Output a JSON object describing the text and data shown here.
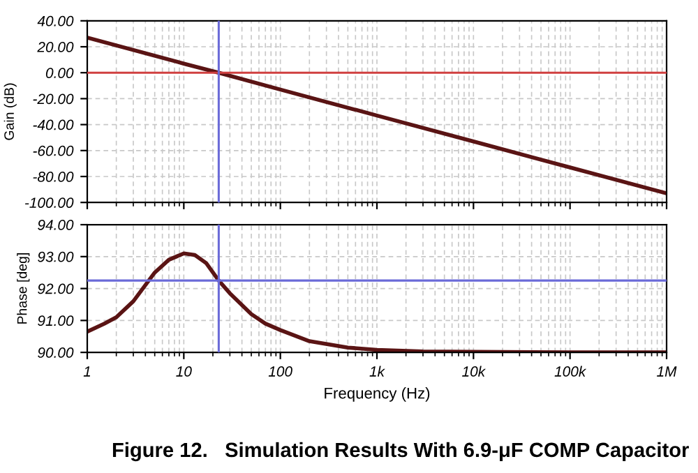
{
  "chart_data": [
    {
      "type": "line",
      "ylabel": "Gain (dB)",
      "log": "x",
      "grid": true,
      "line_style": "solid",
      "tick_labels": "y",
      "series": [
        {
          "color": "#5a1414",
          "x": [
            1,
            10,
            23,
            100,
            1000,
            10000,
            100000,
            1000000
          ],
          "values": [
            27,
            7,
            0,
            -13,
            -33,
            -53,
            -73,
            -93
          ]
        }
      ],
      "xlim": [
        1,
        1000000
      ],
      "xticks": [
        {
          "value": 1,
          "label": null
        },
        {
          "value": 10,
          "label": null
        },
        {
          "value": 100,
          "label": null
        },
        {
          "value": 1000,
          "label": null
        },
        {
          "value": 10000,
          "label": null
        },
        {
          "value": 100000,
          "label": null
        },
        {
          "value": 1000000,
          "label": null
        }
      ],
      "ylim": [
        -100,
        40
      ],
      "yticks": [
        {
          "value": -100,
          "label": "-100.00"
        },
        {
          "value": -80,
          "label": "-80.00"
        },
        {
          "value": -60,
          "label": "-60.00"
        },
        {
          "value": -40,
          "label": "-40.00"
        },
        {
          "value": -20,
          "label": "-20.00"
        },
        {
          "value": 0,
          "label": "0.00"
        },
        {
          "value": 20,
          "label": "20.00"
        },
        {
          "value": 40,
          "label": "40.00"
        }
      ],
      "ref_lines": [
        {
          "axis": "y",
          "value": 0,
          "color": "#d04040"
        },
        {
          "axis": "x",
          "value": 23,
          "color": "#6a6ad8"
        }
      ]
    },
    {
      "type": "line",
      "ylabel": "Phase [deg]",
      "xlabel": "Frequency (Hz)",
      "log": "x",
      "grid": true,
      "line_style": "solid",
      "series": [
        {
          "color": "#5a1414",
          "x": [
            1,
            1.5,
            2,
            3,
            5,
            7,
            10,
            13,
            17,
            23,
            30,
            50,
            70,
            100,
            200,
            500,
            1000,
            3000,
            10000,
            100000,
            1000000
          ],
          "values": [
            90.65,
            90.9,
            91.1,
            91.6,
            92.5,
            92.9,
            93.1,
            93.05,
            92.8,
            92.25,
            91.85,
            91.2,
            90.9,
            90.7,
            90.35,
            90.15,
            90.08,
            90.03,
            90.02,
            90.0,
            90.0
          ]
        }
      ],
      "xlim": [
        1,
        1000000
      ],
      "xticks": [
        1,
        10,
        100,
        {
          "value": 1000,
          "label": "1k"
        },
        {
          "value": 10000,
          "label": "10k"
        },
        {
          "value": 100000,
          "label": "100k"
        },
        {
          "value": 1000000,
          "label": "1M"
        }
      ],
      "ylim": [
        90,
        94
      ],
      "yticks": [
        {
          "value": 90,
          "label": "90.00"
        },
        {
          "value": 91,
          "label": "91.00"
        },
        {
          "value": 92,
          "label": "92.00"
        },
        {
          "value": 93,
          "label": "93.00"
        },
        {
          "value": 94,
          "label": "94.00"
        }
      ],
      "ref_lines": [
        {
          "axis": "y",
          "value": 92.25,
          "color": "#6a6ad8"
        },
        {
          "axis": "x",
          "value": 23,
          "color": "#6a6ad8"
        }
      ],
      "annotations": [
        "Figure 12.   Simulation Results With 6.9-μF COMP Capacitor"
      ]
    }
  ]
}
